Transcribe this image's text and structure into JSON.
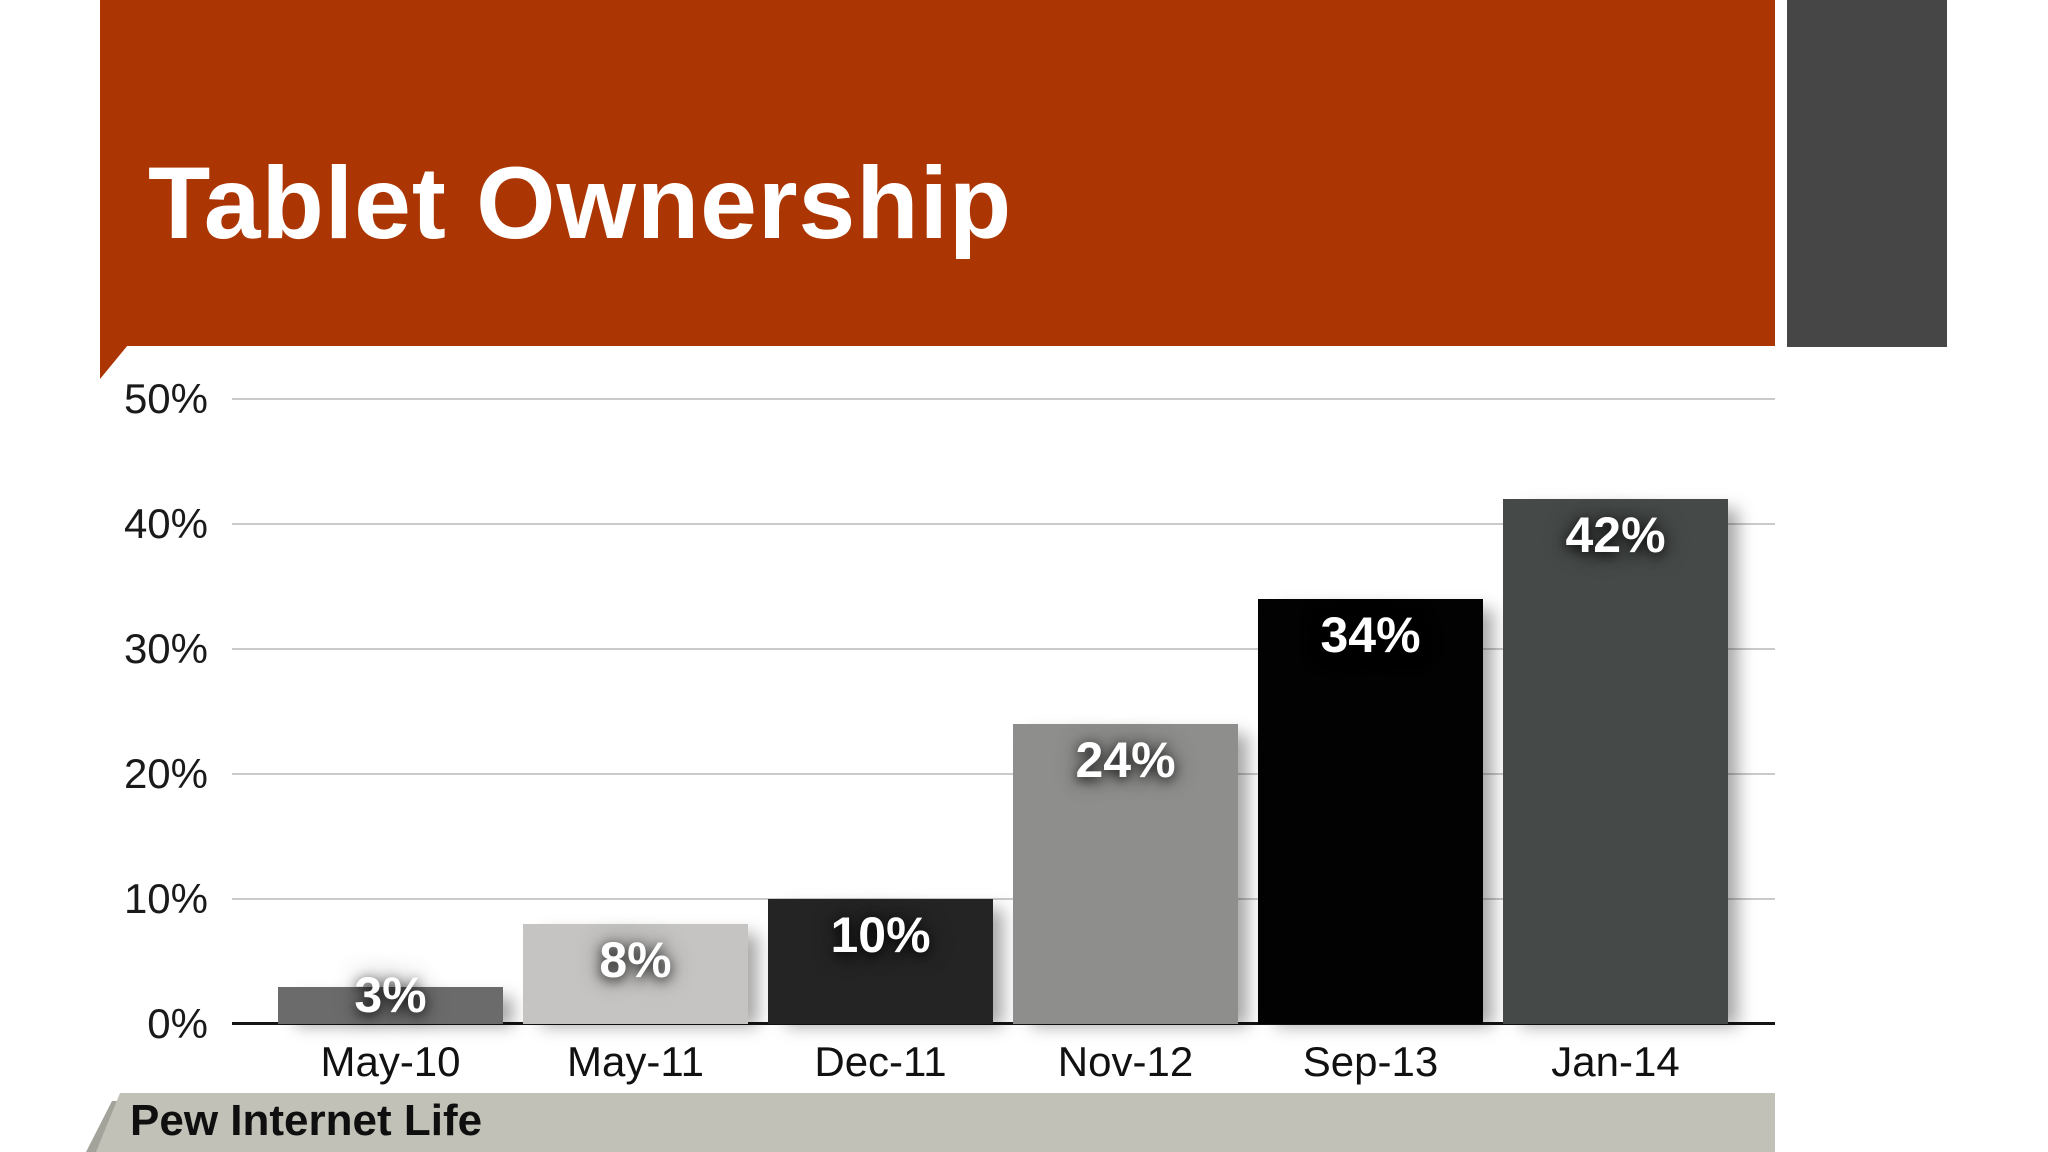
{
  "slide": {
    "title": "Tablet Ownership",
    "footer": "Pew Internet Life"
  },
  "chart_data": {
    "type": "bar",
    "title": "Tablet Ownership",
    "categories": [
      "May-10",
      "May-11",
      "Dec-11",
      "Nov-12",
      "Sep-13",
      "Jan-14"
    ],
    "values": [
      3,
      8,
      10,
      24,
      34,
      42
    ],
    "value_labels": [
      "3%",
      "8%",
      "10%",
      "24%",
      "34%",
      "42%"
    ],
    "y_ticks": [
      "50%",
      "40%",
      "30%",
      "20%",
      "10%",
      "0%"
    ],
    "ylim": [
      0,
      50
    ],
    "grid": true,
    "legend": "none",
    "bar_colors": [
      "#6B6B6B",
      "#C5C4C2",
      "#242424",
      "#8E8E8C",
      "#020202",
      "#454947"
    ],
    "source_label": "Pew Internet Life"
  },
  "colors": {
    "banner_orange": "#AC3603",
    "corner_block_gray": "#464646",
    "footer_band": "#C2C1B8",
    "footer_shadow": "#A4A39B",
    "gridline": "#CACACA",
    "axis_line": "#141414",
    "tick_text": "#1A1A1A",
    "category_text": "#111111",
    "value_text": "#FFFFFF",
    "title_text": "#FFFFFF"
  }
}
